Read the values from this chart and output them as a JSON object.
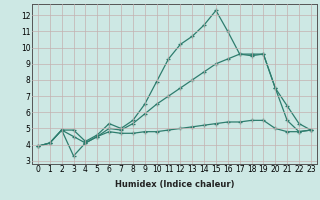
{
  "xlabel": "Humidex (Indice chaleur)",
  "background_color": "#cde8e4",
  "grid_color": "#c4b0b0",
  "line_color": "#2e7d6e",
  "xlim": [
    -0.5,
    23.5
  ],
  "ylim": [
    2.8,
    12.7
  ],
  "xticks": [
    0,
    1,
    2,
    3,
    4,
    5,
    6,
    7,
    8,
    9,
    10,
    11,
    12,
    13,
    14,
    15,
    16,
    17,
    18,
    19,
    20,
    21,
    22,
    23
  ],
  "yticks": [
    3,
    4,
    5,
    6,
    7,
    8,
    9,
    10,
    11,
    12
  ],
  "series1_x": [
    0,
    1,
    2,
    3,
    4,
    5,
    6,
    7,
    8,
    9,
    10,
    11,
    12,
    13,
    14,
    15,
    16,
    17,
    18,
    19,
    20,
    21,
    22,
    23
  ],
  "series1_y": [
    3.9,
    4.1,
    4.9,
    4.9,
    4.2,
    4.6,
    5.3,
    5.0,
    5.5,
    6.5,
    7.9,
    9.3,
    10.2,
    10.7,
    11.4,
    12.3,
    11.0,
    9.6,
    9.5,
    9.6,
    7.5,
    6.4,
    5.3,
    4.9
  ],
  "series2_x": [
    0,
    1,
    2,
    3,
    4,
    5,
    6,
    7,
    8,
    9,
    10,
    11,
    12,
    13,
    14,
    15,
    16,
    17,
    18,
    19,
    20,
    21,
    22,
    23
  ],
  "series2_y": [
    3.9,
    4.1,
    4.9,
    3.3,
    4.1,
    4.5,
    5.0,
    4.9,
    5.3,
    5.9,
    6.5,
    7.0,
    7.5,
    8.0,
    8.5,
    9.0,
    9.3,
    9.6,
    9.6,
    9.6,
    7.5,
    5.5,
    4.8,
    4.9
  ],
  "series3_x": [
    0,
    1,
    2,
    3,
    4,
    5,
    6,
    7,
    8,
    9,
    10,
    11,
    12,
    13,
    14,
    15,
    16,
    17,
    18,
    19,
    20,
    21,
    22,
    23
  ],
  "series3_y": [
    3.9,
    4.1,
    4.9,
    4.5,
    4.1,
    4.5,
    4.8,
    4.7,
    4.7,
    4.8,
    4.8,
    4.9,
    5.0,
    5.1,
    5.2,
    5.3,
    5.4,
    5.4,
    5.5,
    5.5,
    5.0,
    4.8,
    4.8,
    4.9
  ],
  "tick_fontsize": 5.5,
  "xlabel_fontsize": 6
}
